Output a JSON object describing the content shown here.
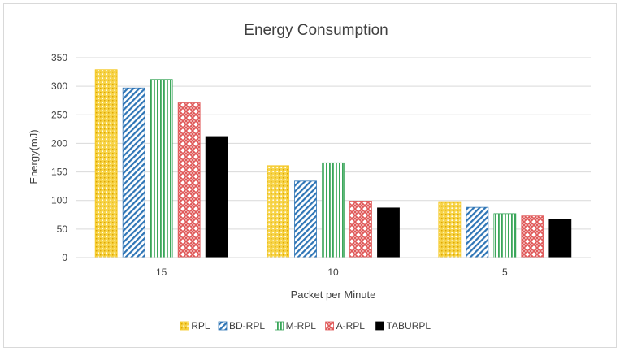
{
  "chart_data": {
    "type": "bar",
    "title": "Energy Consumption",
    "xlabel": "Packet per Minute",
    "ylabel": "Energy(mJ)",
    "categories": [
      "15",
      "10",
      "5"
    ],
    "ylim": [
      0,
      350
    ],
    "yticks": [
      0,
      50,
      100,
      150,
      200,
      250,
      300,
      350
    ],
    "grid": true,
    "legend_position": "bottom",
    "series": [
      {
        "name": "RPL",
        "values": [
          329,
          161,
          98
        ],
        "color": "#f5c518",
        "pattern": "dots-yellow"
      },
      {
        "name": "BD-RPL",
        "values": [
          297,
          134,
          88
        ],
        "color": "#2e75b6",
        "pattern": "diagonal-blue"
      },
      {
        "name": "M-RPL",
        "values": [
          312,
          166,
          77
        ],
        "color": "#3aa65a",
        "pattern": "vertical-green"
      },
      {
        "name": "A-RPL",
        "values": [
          271,
          99,
          73
        ],
        "color": "#e05a5a",
        "pattern": "weave-red"
      },
      {
        "name": "TABURPL",
        "values": [
          212,
          87,
          67
        ],
        "color": "#000000",
        "pattern": "solid-black"
      }
    ]
  }
}
